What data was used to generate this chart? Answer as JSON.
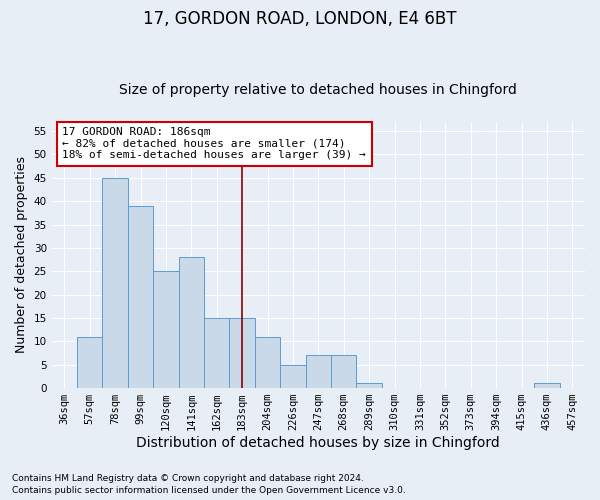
{
  "title": "17, GORDON ROAD, LONDON, E4 6BT",
  "subtitle": "Size of property relative to detached houses in Chingford",
  "xlabel": "Distribution of detached houses by size in Chingford",
  "ylabel": "Number of detached properties",
  "footnote1": "Contains HM Land Registry data © Crown copyright and database right 2024.",
  "footnote2": "Contains public sector information licensed under the Open Government Licence v3.0.",
  "categories": [
    "36sqm",
    "57sqm",
    "78sqm",
    "99sqm",
    "120sqm",
    "141sqm",
    "162sqm",
    "183sqm",
    "204sqm",
    "226sqm",
    "247sqm",
    "268sqm",
    "289sqm",
    "310sqm",
    "331sqm",
    "352sqm",
    "373sqm",
    "394sqm",
    "415sqm",
    "436sqm",
    "457sqm"
  ],
  "values": [
    0,
    11,
    45,
    39,
    25,
    28,
    15,
    15,
    11,
    5,
    7,
    7,
    1,
    0,
    0,
    0,
    0,
    0,
    0,
    1,
    0
  ],
  "bar_color": "#c9d9e8",
  "bar_edge_color": "#5b9bd5",
  "vline_x_idx": 7,
  "vline_color": "#8b0000",
  "annotation_title": "17 GORDON ROAD: 186sqm",
  "annotation_line1": "← 82% of detached houses are smaller (174)",
  "annotation_line2": "18% of semi-detached houses are larger (39) →",
  "annotation_box_color": "#ffffff",
  "annotation_box_edge": "#cc0000",
  "ylim": [
    0,
    57
  ],
  "yticks": [
    0,
    5,
    10,
    15,
    20,
    25,
    30,
    35,
    40,
    45,
    50,
    55
  ],
  "bg_color": "#e8eef5",
  "grid_color": "#ffffff",
  "title_fontsize": 12,
  "subtitle_fontsize": 10,
  "axis_label_fontsize": 9,
  "tick_fontsize": 7.5
}
